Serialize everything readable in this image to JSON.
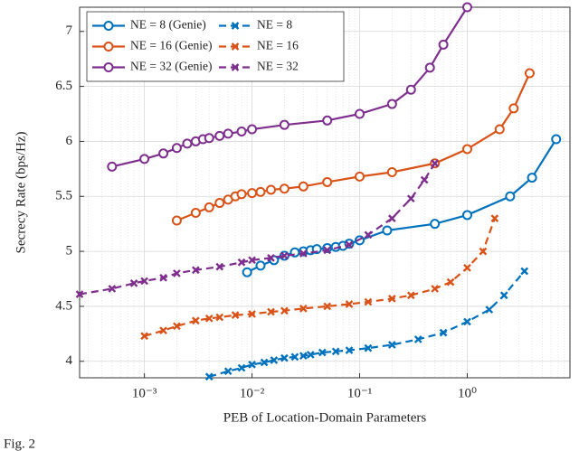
{
  "chart_data": {
    "type": "line",
    "xlabel": "PEB of Location-Domain Parameters",
    "ylabel": "Secrecy Rate (bps/Hz)",
    "caption": "Fig. 2",
    "xscale": "log",
    "xlim": [
      0.00025,
      9
    ],
    "ylim": [
      3.85,
      7.22
    ],
    "xticks": [
      {
        "value": 0.001,
        "label": "10⁻³"
      },
      {
        "value": 0.01,
        "label": "10⁻²"
      },
      {
        "value": 0.1,
        "label": "10⁻¹"
      },
      {
        "value": 1,
        "label": "10⁰"
      }
    ],
    "yticks": [
      4,
      4.5,
      5,
      5.5,
      6,
      6.5,
      7
    ],
    "grid": true,
    "legend": "upper left",
    "series": [
      {
        "name": "NE = 8 (Genie)",
        "color": "#0072bd",
        "style": "solid",
        "marker": "circle",
        "x": [
          0.009,
          0.012,
          0.016,
          0.02,
          0.025,
          0.03,
          0.035,
          0.04,
          0.05,
          0.06,
          0.07,
          0.08,
          0.1,
          0.18,
          0.5,
          1,
          2.5,
          4,
          6.7
        ],
        "values": [
          4.81,
          4.87,
          4.92,
          4.96,
          4.99,
          5.0,
          5.01,
          5.02,
          5.03,
          5.04,
          5.05,
          5.07,
          5.1,
          5.19,
          5.25,
          5.33,
          5.5,
          5.67,
          6.02
        ]
      },
      {
        "name": "NE = 16 (Genie)",
        "color": "#d95319",
        "style": "solid",
        "marker": "circle",
        "x": [
          0.002,
          0.003,
          0.004,
          0.005,
          0.006,
          0.007,
          0.008,
          0.01,
          0.012,
          0.015,
          0.02,
          0.03,
          0.05,
          0.1,
          0.2,
          0.5,
          1,
          2,
          2.7,
          3.8
        ],
        "values": [
          5.28,
          5.35,
          5.4,
          5.44,
          5.47,
          5.5,
          5.52,
          5.53,
          5.54,
          5.56,
          5.57,
          5.59,
          5.63,
          5.68,
          5.72,
          5.8,
          5.93,
          6.11,
          6.3,
          6.62
        ]
      },
      {
        "name": "NE = 32 (Genie)",
        "color": "#7e2f8e",
        "style": "solid",
        "marker": "circle",
        "x": [
          0.0005,
          0.001,
          0.0015,
          0.002,
          0.0025,
          0.003,
          0.0035,
          0.004,
          0.005,
          0.006,
          0.008,
          0.01,
          0.02,
          0.05,
          0.1,
          0.2,
          0.3,
          0.45,
          0.6,
          1
        ],
        "values": [
          5.77,
          5.84,
          5.89,
          5.94,
          5.98,
          6.0,
          6.02,
          6.03,
          6.05,
          6.07,
          6.09,
          6.11,
          6.15,
          6.19,
          6.25,
          6.34,
          6.47,
          6.67,
          6.88,
          7.22
        ]
      },
      {
        "name": "NE = 8",
        "color": "#0072bd",
        "style": "dashed",
        "marker": "x",
        "x": [
          0.004,
          0.006,
          0.008,
          0.01,
          0.013,
          0.016,
          0.02,
          0.025,
          0.03,
          0.035,
          0.045,
          0.06,
          0.08,
          0.12,
          0.2,
          0.35,
          0.6,
          1,
          1.6,
          2.2,
          3.4
        ],
        "values": [
          3.86,
          3.91,
          3.94,
          3.97,
          3.99,
          4.01,
          4.03,
          4.04,
          4.05,
          4.06,
          4.08,
          4.09,
          4.1,
          4.12,
          4.15,
          4.2,
          4.26,
          4.36,
          4.47,
          4.6,
          4.82
        ]
      },
      {
        "name": "NE = 16",
        "color": "#d95319",
        "style": "dashed",
        "marker": "x",
        "x": [
          0.001,
          0.0015,
          0.002,
          0.003,
          0.004,
          0.005,
          0.007,
          0.01,
          0.015,
          0.02,
          0.03,
          0.05,
          0.08,
          0.12,
          0.2,
          0.3,
          0.5,
          0.7,
          1,
          1.4,
          1.8
        ],
        "values": [
          4.23,
          4.28,
          4.32,
          4.37,
          4.39,
          4.4,
          4.42,
          4.43,
          4.45,
          4.46,
          4.48,
          4.5,
          4.52,
          4.54,
          4.57,
          4.6,
          4.66,
          4.72,
          4.85,
          5.0,
          5.3
        ]
      },
      {
        "name": "NE = 32",
        "color": "#7e2f8e",
        "style": "dashed",
        "marker": "x",
        "x": [
          0.00025,
          0.0005,
          0.0008,
          0.001,
          0.0015,
          0.002,
          0.003,
          0.005,
          0.008,
          0.01,
          0.015,
          0.02,
          0.03,
          0.05,
          0.08,
          0.12,
          0.2,
          0.3,
          0.4,
          0.5
        ],
        "values": [
          4.61,
          4.66,
          4.71,
          4.73,
          4.76,
          4.8,
          4.83,
          4.86,
          4.9,
          4.92,
          4.94,
          4.96,
          4.98,
          5.01,
          5.06,
          5.15,
          5.3,
          5.48,
          5.65,
          5.8
        ]
      }
    ]
  }
}
